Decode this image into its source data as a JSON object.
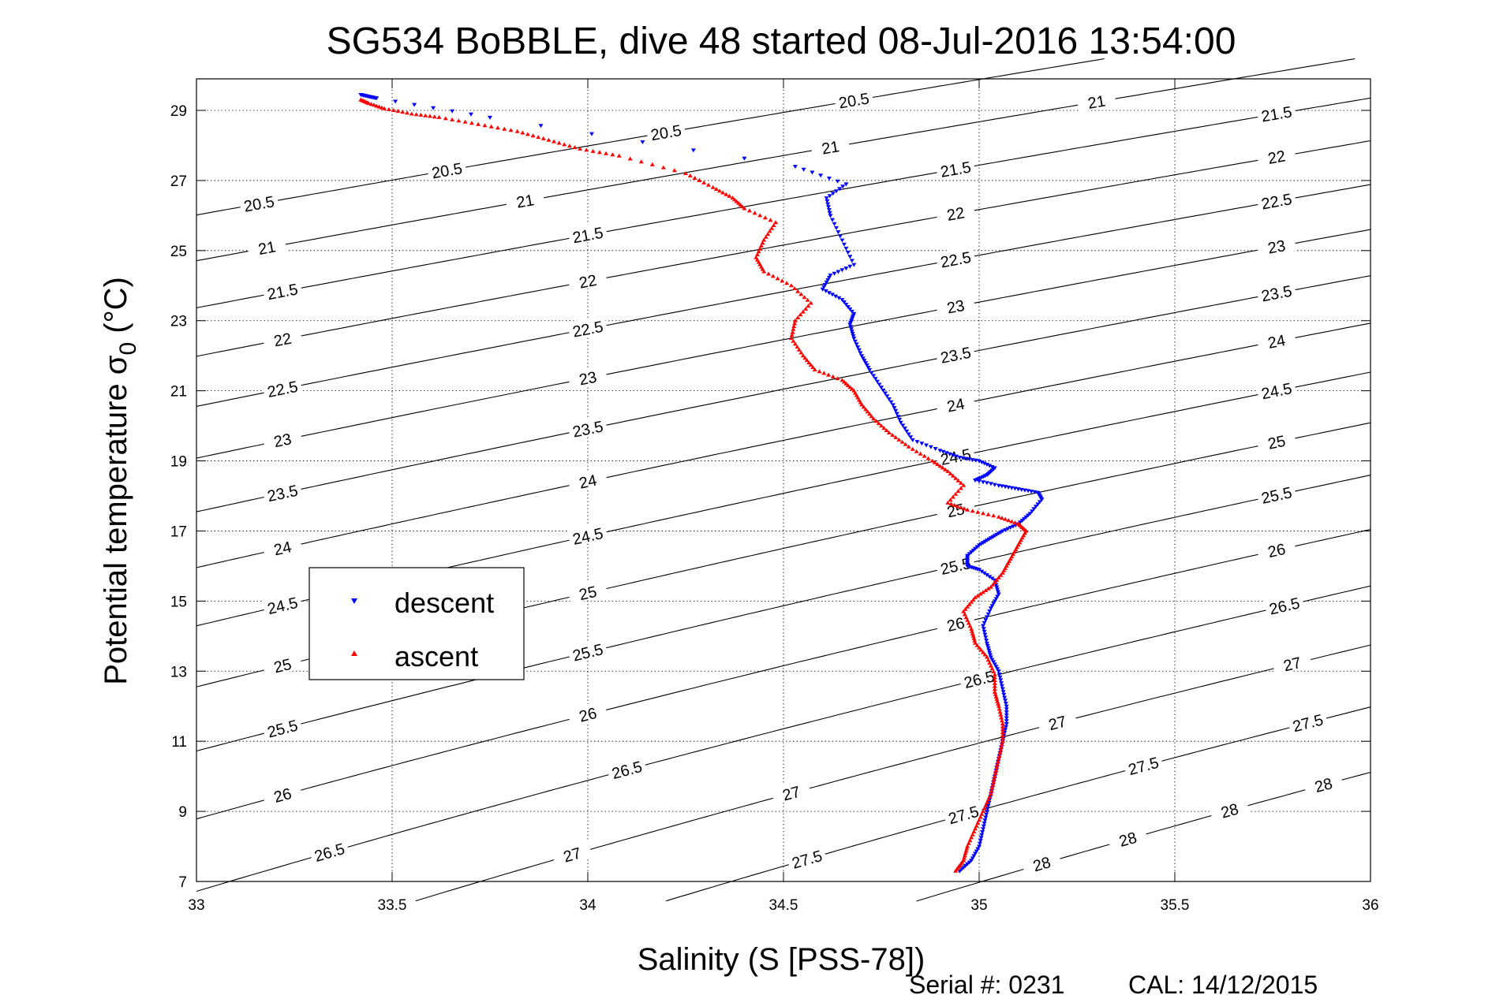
{
  "chart_data": {
    "type": "scatter",
    "title": "SG534 BoBBLE, dive 48 started 08-Jul-2016 13:54:00",
    "xlabel": "Salinity (S [PSS-78])",
    "ylabel_main": "Potential temperature σ",
    "ylabel_sub": "0",
    "ylabel_unit": " (°C)",
    "xlim": [
      33,
      36
    ],
    "ylim": [
      7,
      29.9
    ],
    "x_ticks": [
      "33",
      "33.5",
      "34",
      "34.5",
      "35",
      "35.5",
      "36"
    ],
    "y_ticks": [
      "7",
      "9",
      "11",
      "13",
      "15",
      "17",
      "19",
      "21",
      "23",
      "25",
      "27",
      "29"
    ],
    "grid": true,
    "legend_position": "middle-left",
    "contour_labels": [
      "20.5",
      "21",
      "21.5",
      "22",
      "22.5",
      "23",
      "23.5",
      "24",
      "24.5",
      "25",
      "25.5",
      "26",
      "26.5",
      "27",
      "27.5",
      "28"
    ],
    "series": [
      {
        "name": "descent",
        "color": "#0000ff",
        "marker": "triangle-down",
        "points": [
          [
            33.42,
            29.45
          ],
          [
            33.44,
            29.4
          ],
          [
            33.46,
            29.35
          ],
          [
            33.75,
            28.8
          ],
          [
            34.53,
            27.4
          ],
          [
            34.66,
            26.9
          ],
          [
            34.61,
            26.5
          ],
          [
            34.62,
            26.0
          ],
          [
            34.65,
            25.3
          ],
          [
            34.68,
            24.6
          ],
          [
            34.62,
            24.3
          ],
          [
            34.6,
            23.9
          ],
          [
            34.65,
            23.6
          ],
          [
            34.68,
            23.2
          ],
          [
            34.67,
            22.9
          ],
          [
            34.68,
            22.5
          ],
          [
            34.7,
            22.0
          ],
          [
            34.72,
            21.6
          ],
          [
            34.75,
            21.1
          ],
          [
            34.78,
            20.6
          ],
          [
            34.8,
            20.1
          ],
          [
            34.83,
            19.6
          ],
          [
            34.9,
            19.3
          ],
          [
            34.95,
            19.1
          ],
          [
            35.0,
            19.0
          ],
          [
            35.04,
            18.8
          ],
          [
            35.02,
            18.6
          ],
          [
            34.99,
            18.45
          ],
          [
            35.05,
            18.3
          ],
          [
            35.1,
            18.2
          ],
          [
            35.15,
            18.1
          ],
          [
            35.16,
            17.9
          ],
          [
            35.13,
            17.5
          ],
          [
            35.1,
            17.2
          ],
          [
            35.06,
            17.0
          ],
          [
            35.03,
            16.8
          ],
          [
            35.0,
            16.6
          ],
          [
            34.97,
            16.3
          ],
          [
            34.97,
            16.0
          ],
          [
            35.0,
            15.9
          ],
          [
            35.04,
            15.6
          ],
          [
            35.05,
            15.2
          ],
          [
            35.03,
            14.8
          ],
          [
            35.01,
            14.3
          ],
          [
            35.02,
            13.8
          ],
          [
            35.03,
            13.4
          ],
          [
            35.05,
            13.0
          ],
          [
            35.06,
            12.5
          ],
          [
            35.07,
            12.0
          ],
          [
            35.07,
            11.5
          ],
          [
            35.06,
            11.0
          ],
          [
            35.05,
            10.5
          ],
          [
            35.04,
            10.0
          ],
          [
            35.03,
            9.5
          ],
          [
            35.02,
            9.0
          ],
          [
            35.01,
            8.5
          ],
          [
            35.0,
            8.0
          ],
          [
            34.98,
            7.6
          ],
          [
            34.95,
            7.3
          ]
        ]
      },
      {
        "name": "ascent",
        "color": "#ff0000",
        "marker": "triangle-up",
        "points": [
          [
            33.42,
            29.3
          ],
          [
            33.44,
            29.2
          ],
          [
            33.48,
            29.05
          ],
          [
            33.55,
            28.9
          ],
          [
            33.62,
            28.8
          ],
          [
            33.72,
            28.6
          ],
          [
            33.82,
            28.4
          ],
          [
            33.9,
            28.15
          ],
          [
            33.98,
            27.9
          ],
          [
            34.08,
            27.7
          ],
          [
            34.25,
            27.2
          ],
          [
            34.32,
            26.8
          ],
          [
            34.37,
            26.5
          ],
          [
            34.4,
            26.2
          ],
          [
            34.48,
            25.8
          ],
          [
            34.45,
            25.3
          ],
          [
            34.43,
            24.8
          ],
          [
            34.45,
            24.4
          ],
          [
            34.52,
            24.0
          ],
          [
            34.57,
            23.5
          ],
          [
            34.53,
            23.0
          ],
          [
            34.52,
            22.5
          ],
          [
            34.55,
            22.0
          ],
          [
            34.58,
            21.6
          ],
          [
            34.65,
            21.3
          ],
          [
            34.68,
            21.0
          ],
          [
            34.7,
            20.6
          ],
          [
            34.73,
            20.2
          ],
          [
            34.77,
            19.8
          ],
          [
            34.82,
            19.4
          ],
          [
            34.88,
            19.0
          ],
          [
            34.92,
            18.7
          ],
          [
            34.96,
            18.3
          ],
          [
            34.92,
            17.8
          ],
          [
            34.97,
            17.6
          ],
          [
            35.05,
            17.4
          ],
          [
            35.1,
            17.2
          ],
          [
            35.12,
            17.0
          ],
          [
            35.1,
            16.6
          ],
          [
            35.08,
            16.2
          ],
          [
            35.06,
            15.8
          ],
          [
            35.03,
            15.4
          ],
          [
            34.99,
            15.1
          ],
          [
            34.96,
            14.7
          ],
          [
            34.98,
            14.2
          ],
          [
            34.99,
            13.8
          ],
          [
            35.02,
            13.4
          ],
          [
            35.04,
            12.9
          ],
          [
            35.04,
            12.4
          ],
          [
            35.05,
            12.0
          ],
          [
            35.06,
            11.5
          ],
          [
            35.06,
            11.0
          ],
          [
            35.05,
            10.5
          ],
          [
            35.04,
            10.0
          ],
          [
            35.03,
            9.5
          ],
          [
            35.01,
            9.0
          ],
          [
            34.99,
            8.5
          ],
          [
            34.97,
            8.0
          ],
          [
            34.96,
            7.6
          ],
          [
            34.94,
            7.3
          ]
        ]
      }
    ]
  },
  "footer": {
    "serial": "Serial #: 0231",
    "cal": "CAL: 14/12/2015"
  }
}
